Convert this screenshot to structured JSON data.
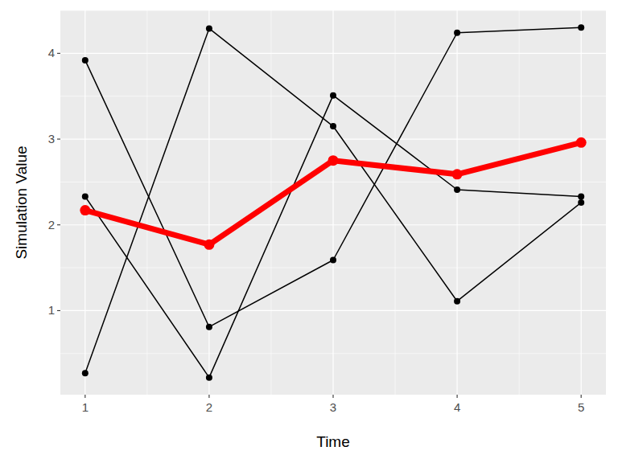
{
  "chart_data": {
    "type": "line",
    "x_label": "Time",
    "y_label": "Simulation Value",
    "x": [
      1,
      2,
      3,
      4,
      5
    ],
    "series": [
      {
        "color": "#000000",
        "marker": "circle",
        "values": [
          3.92,
          0.81,
          1.59,
          4.24,
          4.3
        ]
      },
      {
        "color": "#000000",
        "marker": "circle",
        "values": [
          0.27,
          4.29,
          3.15,
          1.11,
          2.26
        ]
      },
      {
        "color": "#000000",
        "marker": "circle",
        "values": [
          2.33,
          0.22,
          3.51,
          2.41,
          2.33
        ]
      },
      {
        "color": "#ff0000",
        "marker": "circle",
        "values": [
          2.17,
          1.77,
          2.75,
          2.59,
          2.96
        ]
      }
    ],
    "xlim": [
      0.8,
      5.2
    ],
    "xticks": [
      1,
      2,
      3,
      4,
      5
    ],
    "ylim": [
      0.02,
      4.5
    ],
    "yticks": [
      1,
      2,
      3,
      4
    ],
    "grid": true
  }
}
